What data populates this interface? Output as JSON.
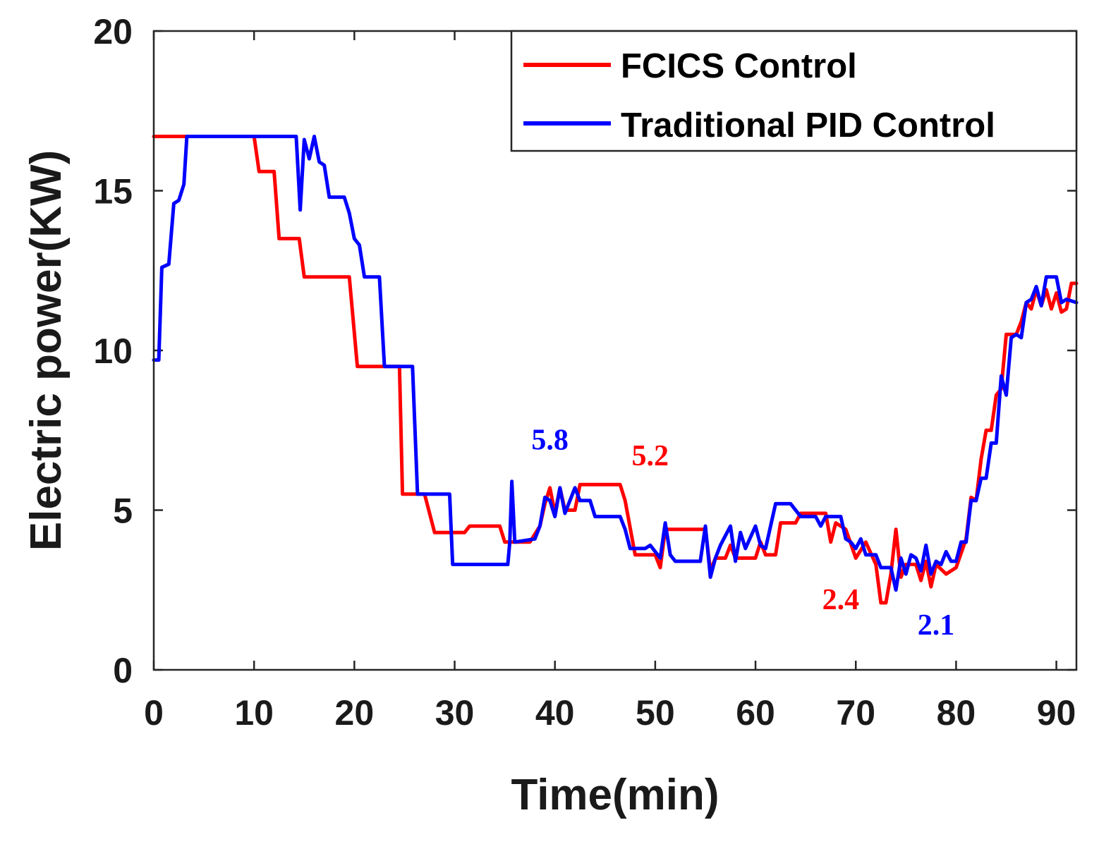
{
  "chart_data": {
    "type": "line",
    "title": "",
    "xlabel": "Time(min)",
    "ylabel": "Electric power(KW)",
    "xlim": [
      0,
      92
    ],
    "ylim": [
      0,
      20
    ],
    "xticks": [
      0,
      10,
      20,
      30,
      40,
      50,
      60,
      70,
      80,
      90
    ],
    "yticks": [
      0,
      5,
      10,
      15,
      20
    ],
    "grid": false,
    "legend_position": "top-right",
    "series": [
      {
        "name": "FCICS Control",
        "color": "#ff0000",
        "points": [
          [
            0,
            16.7
          ],
          [
            10,
            16.7
          ],
          [
            10.5,
            15.6
          ],
          [
            12,
            15.6
          ],
          [
            12.5,
            13.5
          ],
          [
            14.5,
            13.5
          ],
          [
            15,
            12.3
          ],
          [
            19.5,
            12.3
          ],
          [
            20.3,
            9.5
          ],
          [
            24.5,
            9.5
          ],
          [
            24.8,
            5.5
          ],
          [
            27,
            5.5
          ],
          [
            28,
            4.3
          ],
          [
            31,
            4.3
          ],
          [
            31.5,
            4.5
          ],
          [
            34.5,
            4.5
          ],
          [
            35,
            4.0
          ],
          [
            37.5,
            4.0
          ],
          [
            38.5,
            4.5
          ],
          [
            39,
            5.2
          ],
          [
            39.5,
            5.7
          ],
          [
            40,
            4.9
          ],
          [
            40.5,
            5.7
          ],
          [
            41,
            5.0
          ],
          [
            42,
            5.0
          ],
          [
            42.5,
            5.8
          ],
          [
            46.5,
            5.8
          ],
          [
            47,
            5.3
          ],
          [
            48,
            3.6
          ],
          [
            50,
            3.6
          ],
          [
            50.5,
            3.2
          ],
          [
            51,
            4.4
          ],
          [
            52,
            4.4
          ],
          [
            53,
            4.4
          ],
          [
            55,
            4.4
          ],
          [
            55.5,
            3.1
          ],
          [
            56,
            3.5
          ],
          [
            57,
            3.5
          ],
          [
            57.5,
            3.9
          ],
          [
            58,
            3.5
          ],
          [
            60,
            3.5
          ],
          [
            60.5,
            4.0
          ],
          [
            61,
            3.6
          ],
          [
            62,
            3.6
          ],
          [
            62.5,
            4.6
          ],
          [
            64,
            4.6
          ],
          [
            64.5,
            4.9
          ],
          [
            67,
            4.9
          ],
          [
            67.5,
            4.0
          ],
          [
            68,
            4.6
          ],
          [
            69,
            4.4
          ],
          [
            70,
            3.5
          ],
          [
            71,
            4.0
          ],
          [
            72,
            3.3
          ],
          [
            72.5,
            2.1
          ],
          [
            73,
            2.1
          ],
          [
            73.5,
            3.0
          ],
          [
            74,
            4.4
          ],
          [
            74.5,
            2.9
          ],
          [
            75,
            3.3
          ],
          [
            76,
            3.3
          ],
          [
            76.5,
            2.8
          ],
          [
            77,
            3.4
          ],
          [
            77.5,
            2.6
          ],
          [
            78,
            3.3
          ],
          [
            79,
            3.0
          ],
          [
            80,
            3.2
          ],
          [
            81,
            4.1
          ],
          [
            81.5,
            5.4
          ],
          [
            82,
            5.3
          ],
          [
            82.5,
            6.6
          ],
          [
            83,
            7.5
          ],
          [
            83.5,
            7.5
          ],
          [
            84,
            8.6
          ],
          [
            84.5,
            8.8
          ],
          [
            85,
            10.5
          ],
          [
            86,
            10.5
          ],
          [
            86.5,
            10.9
          ],
          [
            87,
            11.5
          ],
          [
            87.5,
            11.3
          ],
          [
            88,
            11.9
          ],
          [
            88.5,
            11.4
          ],
          [
            89,
            11.9
          ],
          [
            89.5,
            11.3
          ],
          [
            90,
            11.8
          ],
          [
            90.5,
            11.2
          ],
          [
            91,
            11.3
          ],
          [
            91.5,
            12.1
          ],
          [
            92,
            12.1
          ]
        ]
      },
      {
        "name": "Traditional PID Control",
        "color": "#0000ff",
        "points": [
          [
            0,
            9.7
          ],
          [
            0.5,
            9.7
          ],
          [
            0.8,
            12.6
          ],
          [
            1.5,
            12.7
          ],
          [
            2,
            14.6
          ],
          [
            2.5,
            14.7
          ],
          [
            3,
            15.2
          ],
          [
            3.3,
            16.7
          ],
          [
            10,
            16.7
          ],
          [
            14.2,
            16.7
          ],
          [
            14.6,
            14.4
          ],
          [
            15,
            16.6
          ],
          [
            15.5,
            16.0
          ],
          [
            16,
            16.7
          ],
          [
            16.5,
            15.9
          ],
          [
            17,
            15.8
          ],
          [
            17.5,
            14.8
          ],
          [
            19,
            14.8
          ],
          [
            19.5,
            14.3
          ],
          [
            20,
            13.5
          ],
          [
            20.5,
            13.3
          ],
          [
            21,
            12.3
          ],
          [
            22.5,
            12.3
          ],
          [
            23,
            9.5
          ],
          [
            25.8,
            9.5
          ],
          [
            26.3,
            5.5
          ],
          [
            29.5,
            5.5
          ],
          [
            29.8,
            3.3
          ],
          [
            35.3,
            3.3
          ],
          [
            35.5,
            4.0
          ],
          [
            35.7,
            5.9
          ],
          [
            36,
            4.0
          ],
          [
            38,
            4.1
          ],
          [
            38.5,
            4.5
          ],
          [
            39,
            5.4
          ],
          [
            39.5,
            5.3
          ],
          [
            40,
            4.8
          ],
          [
            40.5,
            5.7
          ],
          [
            41,
            4.9
          ],
          [
            42,
            5.7
          ],
          [
            42.5,
            5.3
          ],
          [
            43.5,
            5.3
          ],
          [
            44,
            4.8
          ],
          [
            46.5,
            4.8
          ],
          [
            47,
            4.4
          ],
          [
            47.5,
            3.8
          ],
          [
            49,
            3.8
          ],
          [
            49.5,
            3.9
          ],
          [
            50.5,
            3.5
          ],
          [
            51,
            4.6
          ],
          [
            51.5,
            3.6
          ],
          [
            52,
            3.4
          ],
          [
            54.5,
            3.4
          ],
          [
            55,
            4.5
          ],
          [
            55.5,
            2.9
          ],
          [
            56,
            3.5
          ],
          [
            56.5,
            3.9
          ],
          [
            57.5,
            4.5
          ],
          [
            58,
            3.4
          ],
          [
            58.5,
            4.3
          ],
          [
            59,
            3.8
          ],
          [
            60,
            4.5
          ],
          [
            60.5,
            3.9
          ],
          [
            61,
            3.8
          ],
          [
            62,
            5.2
          ],
          [
            63.5,
            5.2
          ],
          [
            64.5,
            4.8
          ],
          [
            66,
            4.8
          ],
          [
            66.5,
            4.5
          ],
          [
            67,
            4.8
          ],
          [
            68.5,
            4.8
          ],
          [
            69,
            4.1
          ],
          [
            69.5,
            4.0
          ],
          [
            70,
            3.8
          ],
          [
            70.5,
            4.1
          ],
          [
            71,
            3.6
          ],
          [
            72,
            3.6
          ],
          [
            72.5,
            3.2
          ],
          [
            73.5,
            3.2
          ],
          [
            74,
            2.5
          ],
          [
            74.5,
            3.5
          ],
          [
            75,
            3.0
          ],
          [
            75.5,
            3.6
          ],
          [
            76,
            3.5
          ],
          [
            76.5,
            3.1
          ],
          [
            77,
            3.9
          ],
          [
            77.5,
            3.0
          ],
          [
            78,
            3.4
          ],
          [
            78.5,
            3.3
          ],
          [
            79,
            3.7
          ],
          [
            79.5,
            3.4
          ],
          [
            80,
            3.4
          ],
          [
            80.5,
            4.0
          ],
          [
            81,
            4.0
          ],
          [
            81.5,
            5.3
          ],
          [
            82,
            5.3
          ],
          [
            82.5,
            6.0
          ],
          [
            83,
            6.0
          ],
          [
            83.5,
            7.1
          ],
          [
            84,
            7.1
          ],
          [
            84.5,
            9.2
          ],
          [
            85,
            8.6
          ],
          [
            85.5,
            10.4
          ],
          [
            86,
            10.5
          ],
          [
            86.5,
            10.4
          ],
          [
            87,
            11.5
          ],
          [
            87.5,
            11.6
          ],
          [
            88,
            12.0
          ],
          [
            88.5,
            11.4
          ],
          [
            89,
            12.3
          ],
          [
            90,
            12.3
          ],
          [
            90.5,
            11.5
          ],
          [
            91,
            11.6
          ],
          [
            92,
            11.5
          ]
        ]
      }
    ],
    "annotations": [
      {
        "text": "5.8",
        "x": 39.5,
        "y": 6.9,
        "color": "#0000ff"
      },
      {
        "text": "5.2",
        "x": 49.5,
        "y": 6.4,
        "color": "#ff0000"
      },
      {
        "text": "2.4",
        "x": 68.5,
        "y": 1.9,
        "color": "#ff0000"
      },
      {
        "text": "2.1",
        "x": 78,
        "y": 1.1,
        "color": "#0000ff"
      }
    ]
  }
}
